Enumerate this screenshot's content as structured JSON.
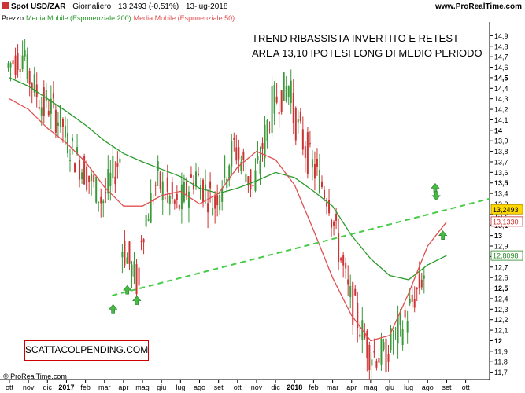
{
  "header": {
    "symbol": "Spot USD/ZAR",
    "timeframe": "Giornaliero",
    "quote": "13,2493 (-0,51%)",
    "date": "13-lug-2018",
    "site": "www.ProRealTime.com"
  },
  "legend": {
    "price_label": "Prezzo",
    "ema200_label": "Media Mobile (Esponenziale 200)",
    "ema50_label": "Media Mobile (Esponenziale 50)"
  },
  "annotation": {
    "line1": "TREND RIBASSISTA INVERTITO E RETEST",
    "line2": "AREA 13,10 IPOTESI LONG DI MEDIO PERIODO"
  },
  "watermark": "SCATTACOLPENDING.COM",
  "footer": "© ProRealTime.com",
  "colors": {
    "candle_up": "#3a9a3a",
    "candle_down": "#cc3333",
    "ema200": "#2a9a2a",
    "ema50": "#e05050",
    "trendline": "#44cc44",
    "arrow": "#44bb44",
    "price_box": "#ffd800",
    "ema50_box_text": "#cc3333",
    "ema200_box_text": "#2a8a2a"
  },
  "chart_data": {
    "type": "candlestick",
    "ylim": [
      11.6,
      15.0
    ],
    "price_axis_ticks": [
      "14,9",
      "14,8",
      "14,7",
      "14,6",
      "14,5",
      "14,4",
      "14,3",
      "14,2",
      "14,1",
      "14",
      "13,9",
      "13,8",
      "13,7",
      "13,6",
      "13,5",
      "13,4",
      "13,3",
      "13,2",
      "13,1",
      "13",
      "12,9",
      "12,8",
      "12,7",
      "12,6",
      "12,5",
      "12,4",
      "12,3",
      "12,2",
      "12,1",
      "12",
      "11,9",
      "11,8",
      "11,7"
    ],
    "bold_ticks": [
      "14,5",
      "14",
      "13,5",
      "13",
      "12,5",
      "12"
    ],
    "time_axis_labels": [
      "ott",
      "nov",
      "dic",
      "2017",
      "feb",
      "mar",
      "apr",
      "mag",
      "giu",
      "lug",
      "ago",
      "set",
      "ott",
      "nov",
      "dic",
      "2018",
      "feb",
      "mar",
      "apr",
      "mag",
      "giu",
      "lug",
      "ago",
      "set",
      "ott"
    ],
    "bold_time_labels": [
      "2017",
      "2018"
    ],
    "current_price": {
      "label": "13,2493",
      "value": 13.2493
    },
    "ema50_last": {
      "label": "13,1330",
      "value": 13.133
    },
    "ema200_last": {
      "label": "12,8098",
      "value": 12.8098
    },
    "ema200_path": [
      [
        0,
        14.5
      ],
      [
        1,
        14.42
      ],
      [
        2,
        14.3
      ],
      [
        3,
        14.18
      ],
      [
        4,
        14.05
      ],
      [
        5,
        13.9
      ],
      [
        6,
        13.78
      ],
      [
        7,
        13.7
      ],
      [
        8,
        13.63
      ],
      [
        9,
        13.56
      ],
      [
        10,
        13.45
      ],
      [
        11,
        13.4
      ],
      [
        12,
        13.45
      ],
      [
        13,
        13.52
      ],
      [
        14,
        13.6
      ],
      [
        15,
        13.55
      ],
      [
        16,
        13.42
      ],
      [
        17,
        13.28
      ],
      [
        18,
        13.0
      ],
      [
        19,
        12.78
      ],
      [
        20,
        12.62
      ],
      [
        21,
        12.58
      ],
      [
        22,
        12.72
      ],
      [
        23,
        12.81
      ]
    ],
    "ema50_path": [
      [
        0,
        14.3
      ],
      [
        1,
        14.2
      ],
      [
        2,
        14.02
      ],
      [
        3,
        13.88
      ],
      [
        4,
        13.7
      ],
      [
        5,
        13.46
      ],
      [
        6,
        13.28
      ],
      [
        7,
        13.28
      ],
      [
        8,
        13.38
      ],
      [
        9,
        13.42
      ],
      [
        10,
        13.3
      ],
      [
        11,
        13.4
      ],
      [
        12,
        13.65
      ],
      [
        13,
        13.8
      ],
      [
        14,
        13.72
      ],
      [
        15,
        13.48
      ],
      [
        16,
        13.05
      ],
      [
        17,
        12.6
      ],
      [
        18,
        12.24
      ],
      [
        19,
        12.0
      ],
      [
        20,
        12.05
      ],
      [
        21,
        12.45
      ],
      [
        22,
        12.9
      ],
      [
        23,
        13.13
      ]
    ],
    "trendline": {
      "start": [
        5.4,
        12.43
      ],
      "end": [
        26.0,
        13.35
      ]
    },
    "arrows_up": [
      [
        5.45,
        12.3
      ],
      [
        6.2,
        12.48
      ],
      [
        6.7,
        12.38
      ],
      [
        22.4,
        13.45
      ],
      [
        22.8,
        13.0
      ]
    ],
    "arrows_down": [
      [
        22.45,
        13.38
      ]
    ],
    "candles_summary_closes": [
      14.75,
      14.2,
      14.05,
      13.65,
      13.35,
      13.75,
      12.5,
      13.55,
      13.25,
      13.6,
      13.3,
      13.85,
      13.45,
      14.25,
      14.45,
      13.7,
      13.35,
      12.45,
      11.95,
      11.85,
      12.2,
      12.65,
      13.6,
      13.97,
      13.25
    ],
    "candles_summary_opens": [
      14.6,
      14.6,
      14.3,
      13.95,
      13.65,
      13.3,
      12.95,
      12.95,
      13.5,
      13.25,
      13.55,
      13.35,
      13.85,
      13.45,
      14.25,
      14.2,
      13.7,
      13.3,
      12.45,
      11.9,
      11.9,
      12.2,
      12.65,
      13.6,
      13.97
    ]
  }
}
